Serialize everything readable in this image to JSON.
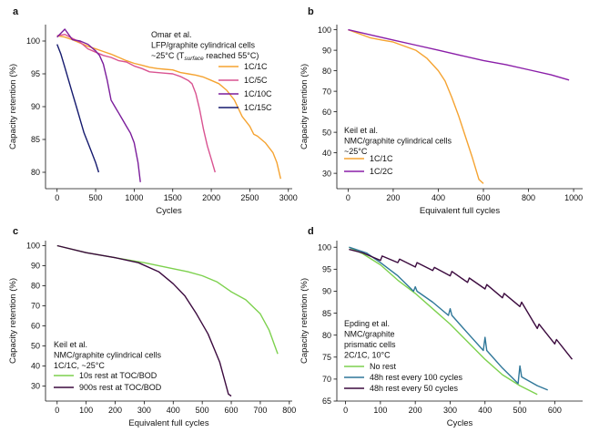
{
  "chart_data": [
    {
      "type": "line",
      "panel": "a",
      "xlabel": "Cycles",
      "ylabel": "Capacity retention (%)",
      "xlim": [
        -150,
        3050
      ],
      "ylim": [
        77.5,
        102.5
      ],
      "xticks": [
        0,
        500,
        1000,
        1500,
        2000,
        2500,
        3000
      ],
      "yticks": [
        80,
        85,
        90,
        95,
        100
      ],
      "annotation": [
        "Omar et al.",
        "LFP/graphite cylindrical cells",
        "~25°C (T",
        "surface",
        " reached 55°C)"
      ],
      "legend": "center-right",
      "series": [
        {
          "name": "1C/1C",
          "color": "#f5a331",
          "x": [
            0,
            100,
            200,
            300,
            400,
            500,
            600,
            700,
            800,
            900,
            1000,
            1100,
            1200,
            1300,
            1400,
            1500,
            1600,
            1700,
            1800,
            1900,
            2000,
            2100,
            2200,
            2300,
            2400,
            2500,
            2550,
            2600,
            2700,
            2800,
            2850,
            2900
          ],
          "y": [
            100.8,
            100.6,
            100.2,
            99.7,
            99.2,
            98.8,
            98.4,
            98.0,
            97.5,
            97.0,
            96.6,
            96.3,
            96.0,
            95.8,
            95.7,
            95.6,
            95.2,
            95.0,
            94.8,
            94.5,
            94.0,
            93.5,
            92.5,
            91.0,
            88.5,
            87.0,
            85.8,
            85.5,
            84.5,
            83.0,
            81.5,
            79.0
          ]
        },
        {
          "name": "1C/5C",
          "color": "#d95391",
          "x": [
            0,
            100,
            200,
            300,
            400,
            500,
            600,
            700,
            800,
            900,
            1000,
            1100,
            1200,
            1300,
            1400,
            1500,
            1600,
            1700,
            1750,
            1800,
            1850,
            1900,
            1950,
            2000,
            2050
          ],
          "y": [
            100.8,
            101.0,
            100.4,
            99.8,
            98.8,
            98.3,
            97.8,
            97.5,
            97.0,
            96.8,
            96.2,
            95.8,
            95.3,
            95.2,
            95.1,
            95.0,
            94.6,
            94.0,
            93.5,
            92.0,
            89.5,
            86.5,
            84.0,
            82.0,
            80.0
          ]
        },
        {
          "name": "1C/10C",
          "color": "#7b1d9b",
          "x": [
            0,
            100,
            200,
            300,
            400,
            500,
            550,
            600,
            650,
            700,
            750,
            800,
            850,
            900,
            950,
            1000,
            1050,
            1080
          ],
          "y": [
            100.6,
            101.8,
            100.2,
            100.0,
            99.5,
            98.5,
            97.8,
            96.5,
            94.0,
            91.0,
            90.0,
            89.0,
            88.0,
            87.0,
            86.0,
            84.5,
            81.5,
            78.5
          ]
        },
        {
          "name": "1C/15C",
          "color": "#151a6e",
          "x": [
            0,
            50,
            100,
            150,
            200,
            250,
            300,
            350,
            400,
            450,
            500,
            540
          ],
          "y": [
            99.5,
            98.0,
            96.0,
            94.0,
            92.0,
            90.0,
            88.0,
            86.0,
            84.5,
            83.0,
            81.5,
            80.0
          ]
        }
      ]
    },
    {
      "type": "line",
      "panel": "b",
      "xlabel": "Equivalent full cycles",
      "ylabel": "Capacity retention (%)",
      "xlim": [
        -50,
        1040
      ],
      "ylim": [
        22.5,
        102.5
      ],
      "xticks": [
        0,
        200,
        400,
        600,
        800,
        1000
      ],
      "yticks": [
        30,
        40,
        50,
        60,
        70,
        80,
        90,
        100
      ],
      "annotation": [
        "Keil et al.",
        "NMC/graphite cylindrical cells",
        "~25°C"
      ],
      "legend": "bottom-left",
      "series": [
        {
          "name": "1C/1C",
          "color": "#f5a331",
          "x": [
            0,
            50,
            100,
            150,
            200,
            250,
            300,
            350,
            400,
            430,
            460,
            490,
            520,
            550,
            580,
            600
          ],
          "y": [
            100,
            98,
            96,
            95,
            94,
            92,
            90,
            86,
            80,
            75,
            67,
            58,
            48,
            38,
            27,
            25
          ]
        },
        {
          "name": "1C/2C",
          "color": "#8a1ea8",
          "x": [
            0,
            100,
            200,
            300,
            400,
            500,
            600,
            700,
            800,
            900,
            980
          ],
          "y": [
            100,
            97.5,
            95,
            92.5,
            90,
            87.5,
            85,
            83,
            80.5,
            78,
            75.5
          ]
        }
      ]
    },
    {
      "type": "line",
      "panel": "c",
      "xlabel": "Equivalent full cycles",
      "ylabel": "Capacity retention (%)",
      "xlim": [
        -40,
        810
      ],
      "ylim": [
        22.5,
        102.5
      ],
      "xticks": [
        0,
        100,
        200,
        300,
        400,
        500,
        600,
        700,
        800
      ],
      "yticks": [
        30,
        40,
        50,
        60,
        70,
        80,
        90,
        100
      ],
      "annotation": [
        "Keil et al.",
        "NMC/graphite cylindrical cells",
        "1C/1C, ~25°C"
      ],
      "legend": "bottom-left",
      "series": [
        {
          "name": "10s rest at TOC/BOD",
          "color": "#7dd14e",
          "x": [
            0,
            100,
            200,
            300,
            400,
            450,
            500,
            550,
            600,
            650,
            700,
            730,
            760
          ],
          "y": [
            100,
            96.5,
            94,
            91.5,
            88.5,
            87,
            85,
            82,
            77,
            73,
            66,
            58,
            46
          ]
        },
        {
          "name": "900s rest at TOC/BOD",
          "color": "#3b0a3e",
          "x": [
            0,
            100,
            200,
            280,
            350,
            400,
            440,
            480,
            520,
            560,
            590,
            600
          ],
          "y": [
            100,
            96.5,
            94,
            91.5,
            87,
            81,
            75,
            66,
            56,
            42,
            26,
            25
          ]
        }
      ]
    },
    {
      "type": "line",
      "panel": "d",
      "xlabel": "Cycles",
      "ylabel": "Capacity retention (%)",
      "xlim": [
        -25,
        680
      ],
      "ylim": [
        65,
        101.5
      ],
      "xticks": [
        0,
        100,
        200,
        300,
        400,
        500,
        600
      ],
      "yticks": [
        65,
        70,
        75,
        80,
        85,
        90,
        95,
        100
      ],
      "annotation": [
        "Epding et al.",
        "NMC/graphite",
        "prismatic cells",
        "2C/1C, 10°C"
      ],
      "legend": "bottom-left",
      "series": [
        {
          "name": "No rest",
          "color": "#7dd14e",
          "x": [
            10,
            50,
            100,
            150,
            200,
            250,
            300,
            350,
            400,
            450,
            500,
            550
          ],
          "y": [
            100,
            98.5,
            96,
            92.5,
            89.5,
            86,
            82.5,
            78.5,
            74.5,
            71,
            68.5,
            66.5
          ]
        },
        {
          "name": "48h rest every 100 cycles",
          "color": "#2f7799",
          "x": [
            10,
            60,
            100,
            150,
            195,
            200,
            205,
            250,
            295,
            300,
            305,
            350,
            395,
            400,
            405,
            450,
            495,
            500,
            505,
            550,
            580
          ],
          "y": [
            100,
            98.7,
            96.5,
            93.5,
            90,
            91,
            90,
            87.5,
            84.5,
            86,
            84.5,
            80.5,
            76.5,
            79.5,
            76.5,
            72.5,
            69,
            73,
            70.5,
            68.5,
            67.5
          ]
        },
        {
          "name": "48h rest every 50 cycles",
          "color": "#3b0a3e",
          "x": [
            10,
            50,
            100,
            105,
            150,
            155,
            200,
            205,
            250,
            255,
            300,
            305,
            350,
            355,
            400,
            405,
            450,
            455,
            500,
            505,
            550,
            555,
            600,
            605,
            650
          ],
          "y": [
            99.5,
            98.7,
            97,
            98,
            96.5,
            97.3,
            95.5,
            96.5,
            94.7,
            95.4,
            93.5,
            94.5,
            92,
            93,
            90.5,
            91.5,
            88.5,
            89.5,
            86.5,
            87.5,
            81.5,
            82.5,
            78,
            79,
            74.5
          ]
        }
      ]
    }
  ],
  "legend_title_suffix_a": "55°C"
}
